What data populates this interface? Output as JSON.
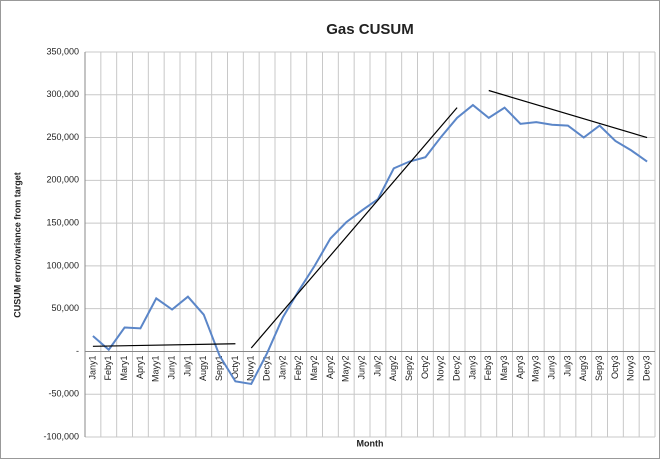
{
  "chart_data": {
    "type": "line",
    "title": "Gas CUSUM",
    "x_label": "Month",
    "y_label": "CUSUM error/variance from target",
    "categories": [
      "Jany1",
      "Feby1",
      "Mary1",
      "Apry1",
      "Mayy1",
      "Juny1",
      "July1",
      "Augy1",
      "Sepy1",
      "Octy1",
      "Novy1",
      "Decy1",
      "Jany2",
      "Feby2",
      "Mary2",
      "Apry2",
      "Mayy2",
      "Juny2",
      "July2",
      "Augy2",
      "Sepy2",
      "Octy2",
      "Novy2",
      "Decy2",
      "Jany3",
      "Feby3",
      "Mary3",
      "Apry3",
      "Mayy3",
      "Juny3",
      "July3",
      "Augy3",
      "Sepy3",
      "Octy3",
      "Novy3",
      "Decy3"
    ],
    "series": [
      {
        "name": "CUSUM",
        "color": "#5b86c8",
        "values": [
          18000,
          2000,
          28000,
          27000,
          62000,
          49000,
          64000,
          43000,
          -5000,
          -35000,
          -38000,
          -2000,
          40000,
          71000,
          100000,
          132000,
          151000,
          165000,
          178000,
          214000,
          222000,
          227000,
          251000,
          273000,
          288000,
          273000,
          285000,
          266000,
          268000,
          265000,
          264000,
          250000,
          264000,
          246000,
          235000,
          222000
        ]
      }
    ],
    "trendlines": [
      {
        "color": "#000000",
        "x": [
          "Jany1",
          "Octy1"
        ],
        "values": [
          6000,
          9000
        ]
      },
      {
        "color": "#000000",
        "x": [
          "Novy1",
          "Decy2"
        ],
        "values": [
          4000,
          285000
        ]
      },
      {
        "color": "#000000",
        "x": [
          "Feby3",
          "Decy3"
        ],
        "values": [
          305000,
          250000
        ]
      }
    ],
    "ylim": [
      -100000,
      350000
    ],
    "yticks": [
      {
        "value": -100000,
        "label": "-100,000"
      },
      {
        "value": -50000,
        "label": "-50,000"
      },
      {
        "value": 0,
        "label": "-"
      },
      {
        "value": 50000,
        "label": "50,000"
      },
      {
        "value": 100000,
        "label": "100,000"
      },
      {
        "value": 150000,
        "label": "150,000"
      },
      {
        "value": 200000,
        "label": "200,000"
      },
      {
        "value": 250000,
        "label": "250,000"
      },
      {
        "value": 300000,
        "label": "300,000"
      },
      {
        "value": 350000,
        "label": "350,000"
      }
    ],
    "grid": true
  }
}
